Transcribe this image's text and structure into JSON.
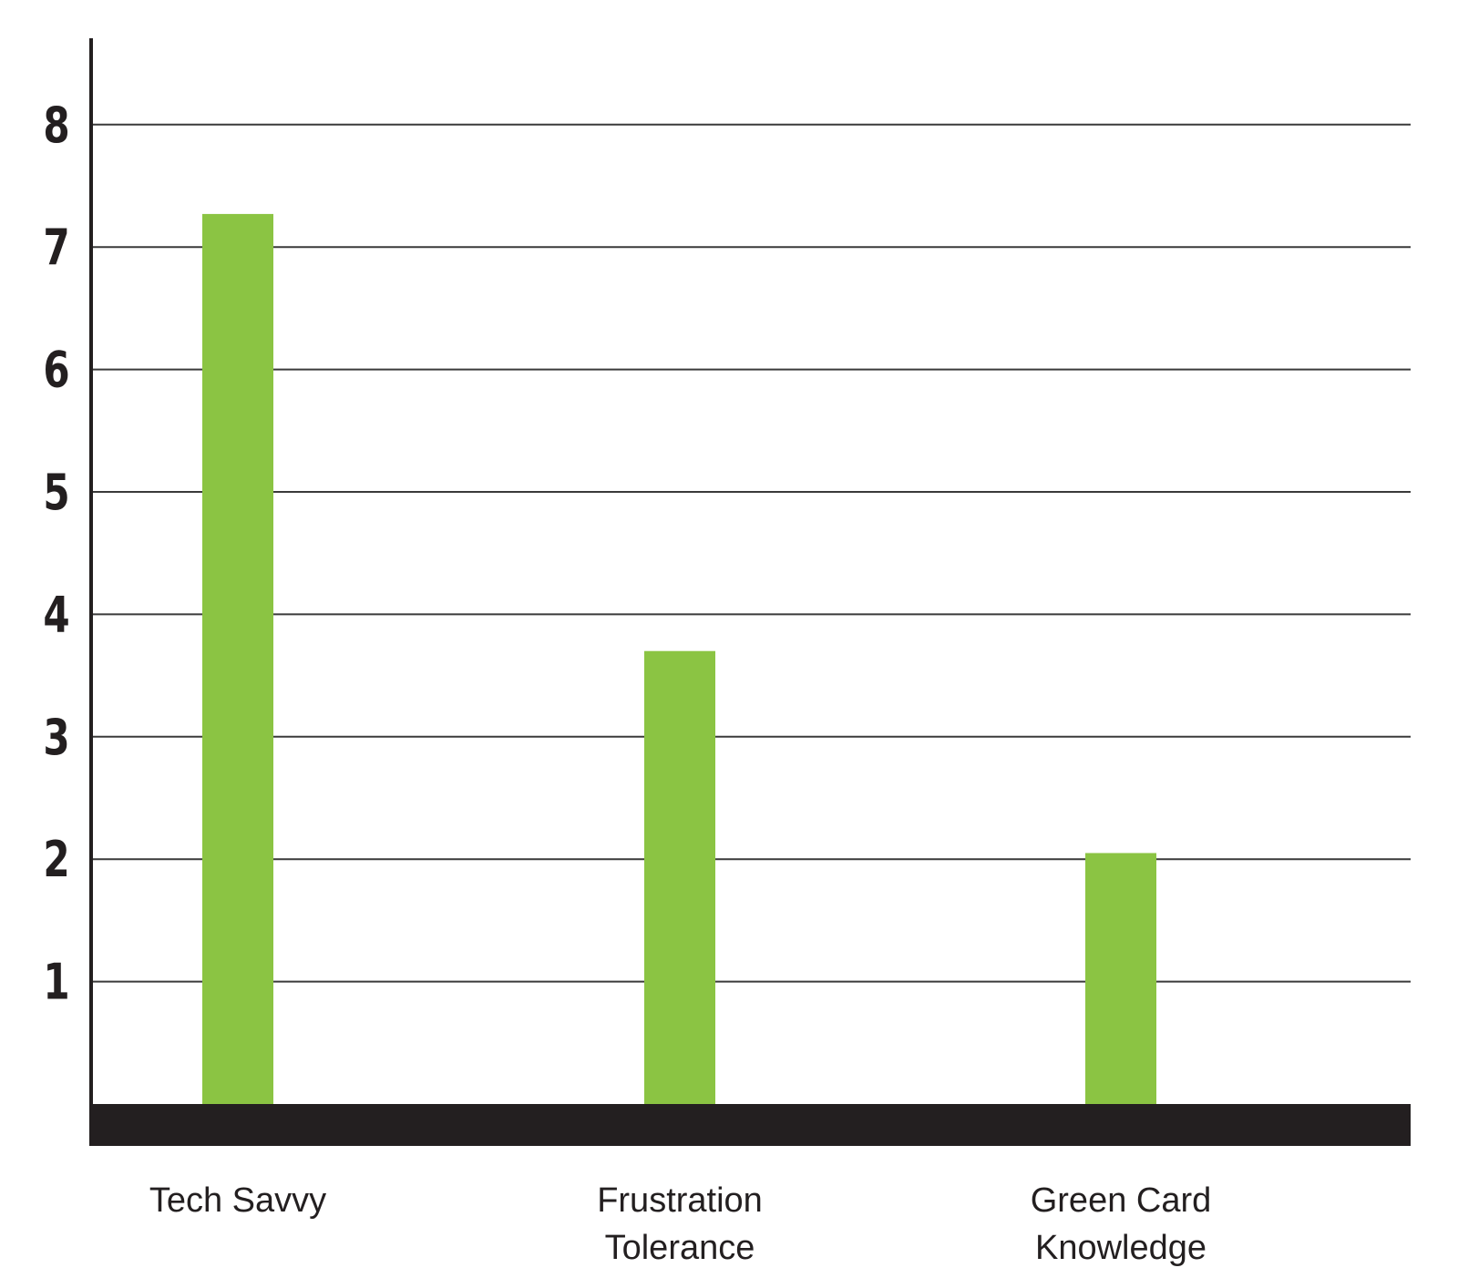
{
  "chart_data": {
    "type": "bar",
    "categories": [
      [
        "Tech Savvy"
      ],
      [
        "Frustration",
        "Tolerance"
      ],
      [
        "Green Card",
        "Knowledge"
      ]
    ],
    "values": [
      7.27,
      3.7,
      2.05
    ],
    "title": "",
    "xlabel": "",
    "ylabel": "",
    "ylim": [
      0,
      8.8
    ],
    "yticks": [
      "1",
      "2",
      "3",
      "4",
      "5",
      "6",
      "7",
      "8"
    ],
    "grid": true,
    "legend": "none",
    "colors": {
      "bar": "#8bc443",
      "axis": "#231f20",
      "grid": "#3a3a3a",
      "baseline": "#231f20"
    }
  }
}
